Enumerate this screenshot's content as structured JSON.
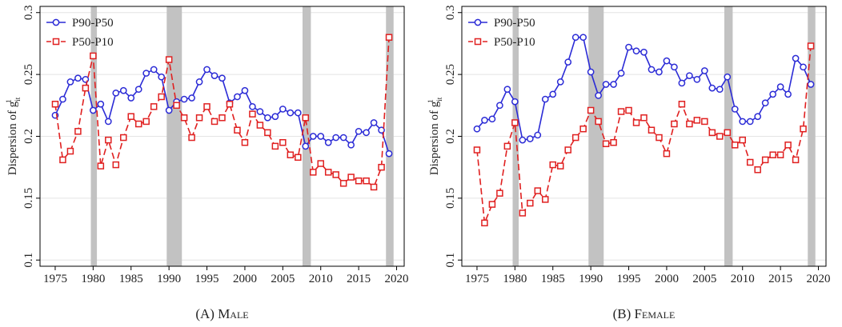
{
  "chart_data": [
    {
      "type": "line",
      "caption": "(A) Male",
      "ylabel": "Dispersion of g",
      "ylabel_sub": "it",
      "ylabel_sup": "1",
      "x": [
        1975,
        1976,
        1977,
        1978,
        1979,
        1980,
        1981,
        1982,
        1983,
        1984,
        1985,
        1986,
        1987,
        1988,
        1989,
        1990,
        1991,
        1992,
        1993,
        1994,
        1995,
        1996,
        1997,
        1998,
        1999,
        2000,
        2001,
        2002,
        2003,
        2004,
        2005,
        2006,
        2007,
        2008,
        2009,
        2010,
        2011,
        2012,
        2013,
        2014,
        2015,
        2016,
        2017,
        2018,
        2019
      ],
      "series": [
        {
          "name": "P90-P50",
          "color": "#2b2bd6",
          "marker": "circle",
          "dashed": false,
          "values": [
            0.217,
            0.23,
            0.244,
            0.247,
            0.246,
            0.221,
            0.226,
            0.212,
            0.235,
            0.237,
            0.231,
            0.238,
            0.251,
            0.254,
            0.248,
            0.221,
            0.228,
            0.23,
            0.231,
            0.244,
            0.254,
            0.249,
            0.247,
            0.227,
            0.232,
            0.237,
            0.224,
            0.22,
            0.215,
            0.216,
            0.222,
            0.219,
            0.219,
            0.192,
            0.2,
            0.2,
            0.195,
            0.199,
            0.199,
            0.193,
            0.204,
            0.203,
            0.211,
            0.205,
            0.186
          ]
        },
        {
          "name": "P50-P10",
          "color": "#e02020",
          "marker": "square",
          "dashed": true,
          "values": [
            0.226,
            0.181,
            0.188,
            0.204,
            0.239,
            0.265,
            0.176,
            0.197,
            0.177,
            0.199,
            0.216,
            0.21,
            0.212,
            0.224,
            0.232,
            0.262,
            0.225,
            0.215,
            0.199,
            0.215,
            0.224,
            0.212,
            0.215,
            0.226,
            0.205,
            0.195,
            0.218,
            0.209,
            0.203,
            0.192,
            0.195,
            0.185,
            0.183,
            0.215,
            0.171,
            0.178,
            0.171,
            0.169,
            0.162,
            0.167,
            0.164,
            0.164,
            0.159,
            0.175,
            0.28
          ]
        }
      ],
      "shaded": [
        [
          1979.7,
          1980.5
        ],
        [
          1989.7,
          1991.7
        ],
        [
          2007.6,
          2008.7
        ],
        [
          2018.6,
          2019.6
        ]
      ],
      "xlim": [
        1973,
        2021
      ],
      "ylim": [
        0.095,
        0.305
      ],
      "xticks": [
        1975,
        1980,
        1985,
        1990,
        1995,
        2000,
        2005,
        2010,
        2015,
        2020
      ],
      "yticks": [
        0.1,
        0.15,
        0.2,
        0.25,
        0.3
      ],
      "grid": true,
      "legend": "top-left"
    },
    {
      "type": "line",
      "caption": "(B) Female",
      "ylabel": "Dispersion of g",
      "ylabel_sub": "it",
      "ylabel_sup": "1",
      "x": [
        1975,
        1976,
        1977,
        1978,
        1979,
        1980,
        1981,
        1982,
        1983,
        1984,
        1985,
        1986,
        1987,
        1988,
        1989,
        1990,
        1991,
        1992,
        1993,
        1994,
        1995,
        1996,
        1997,
        1998,
        1999,
        2000,
        2001,
        2002,
        2003,
        2004,
        2005,
        2006,
        2007,
        2008,
        2009,
        2010,
        2011,
        2012,
        2013,
        2014,
        2015,
        2016,
        2017,
        2018,
        2019
      ],
      "series": [
        {
          "name": "P90-P50",
          "color": "#2b2bd6",
          "marker": "circle",
          "dashed": false,
          "values": [
            0.206,
            0.213,
            0.214,
            0.225,
            0.238,
            0.228,
            0.197,
            0.198,
            0.201,
            0.23,
            0.234,
            0.244,
            0.26,
            0.28,
            0.28,
            0.252,
            0.233,
            0.242,
            0.242,
            0.251,
            0.272,
            0.269,
            0.268,
            0.254,
            0.252,
            0.261,
            0.256,
            0.243,
            0.249,
            0.246,
            0.253,
            0.239,
            0.238,
            0.248,
            0.222,
            0.212,
            0.212,
            0.216,
            0.227,
            0.234,
            0.24,
            0.234,
            0.263,
            0.256,
            0.242
          ]
        },
        {
          "name": "P50-P10",
          "color": "#e02020",
          "marker": "square",
          "dashed": true,
          "values": [
            0.189,
            0.13,
            0.145,
            0.154,
            0.192,
            0.211,
            0.138,
            0.146,
            0.156,
            0.149,
            0.177,
            0.176,
            0.189,
            0.199,
            0.206,
            0.221,
            0.212,
            0.194,
            0.195,
            0.22,
            0.221,
            0.211,
            0.215,
            0.205,
            0.199,
            0.186,
            0.21,
            0.226,
            0.21,
            0.213,
            0.212,
            0.203,
            0.2,
            0.203,
            0.193,
            0.197,
            0.179,
            0.173,
            0.181,
            0.185,
            0.185,
            0.193,
            0.181,
            0.206,
            0.273
          ]
        }
      ],
      "shaded": [
        [
          1979.7,
          1980.5
        ],
        [
          1989.7,
          1991.7
        ],
        [
          2007.6,
          2008.7
        ],
        [
          2018.6,
          2019.6
        ]
      ],
      "xlim": [
        1973,
        2021
      ],
      "ylim": [
        0.095,
        0.305
      ],
      "xticks": [
        1975,
        1980,
        1985,
        1990,
        1995,
        2000,
        2005,
        2010,
        2015,
        2020
      ],
      "yticks": [
        0.1,
        0.15,
        0.2,
        0.25,
        0.3
      ],
      "grid": true,
      "legend": "top-left"
    }
  ]
}
